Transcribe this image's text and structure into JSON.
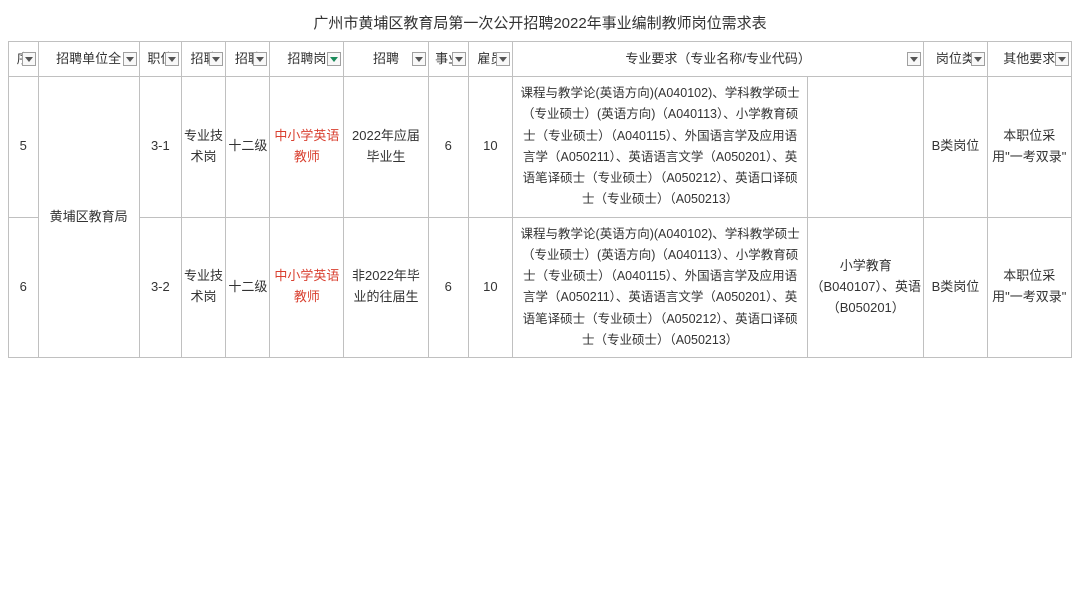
{
  "title": "广州市黄埔区教育局第一次公开招聘2022年事业编制教师岗位需求表",
  "headers": {
    "seq": "序",
    "unit": "招聘单位全",
    "pos": "职位",
    "type": "招聘",
    "level": "招聘",
    "job": "招聘岗",
    "source": "招聘",
    "num1": "事业",
    "num2": "雇员",
    "req": "专业要求（专业名称/专业代码）",
    "cat": "岗位类",
    "other": "其他要求"
  },
  "merged_unit": "黄埔区教育局",
  "rows": [
    {
      "seq": "5",
      "pos": "3-1",
      "type": "专业技术岗",
      "level": "十二级",
      "job": "中小学英语教师",
      "source": "2022年应届毕业生",
      "num1": "6",
      "num2": "10",
      "req1": "课程与教学论(英语方向)(A040102)、学科教学硕士（专业硕士）(英语方向)（A040113）、小学教育硕士（专业硕士）（A040115）、外国语言学及应用语言学（A050211）、英语语言文学（A050201）、英语笔译硕士（专业硕士）（A050212）、英语口译硕士（专业硕士）（A050213）",
      "req2": "",
      "cat": "B类岗位",
      "other": "本职位采用\"一考双录\""
    },
    {
      "seq": "6",
      "pos": "3-2",
      "type": "专业技术岗",
      "level": "十二级",
      "job": "中小学英语教师",
      "source": "非2022年毕业的往届生",
      "num1": "6",
      "num2": "10",
      "req1": "课程与教学论(英语方向)(A040102)、学科教学硕士（专业硕士）(英语方向)（A040113）、小学教育硕士（专业硕士）（A040115）、外国语言学及应用语言学（A050211）、英语语言文学（A050201）、英语笔译硕士（专业硕士）（A050212）、英语口译硕士（专业硕士）（A050213）",
      "req2": "小学教育（B040107）、英语（B050201）",
      "cat": "B类岗位",
      "other": "本职位采用\"一考双录\""
    }
  ],
  "style": {
    "highlight_color": "#d94030",
    "border_color": "#c0c0c0",
    "background": "#ffffff",
    "font_family": "Microsoft YaHei"
  }
}
